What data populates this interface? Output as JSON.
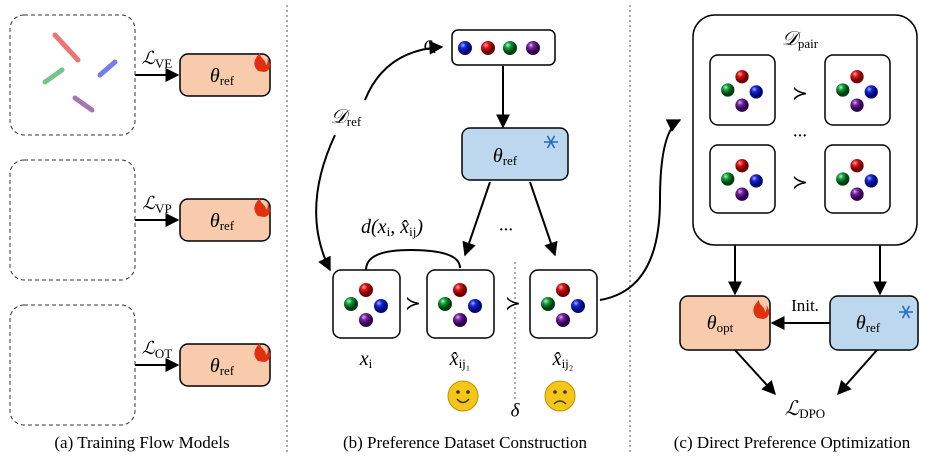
{
  "panel_a": {
    "losses": [
      [
        "ℒ",
        "VE"
      ],
      [
        "ℒ",
        "VP"
      ],
      [
        "ℒ",
        "OT"
      ]
    ],
    "models": [
      [
        "θ",
        "ref"
      ],
      [
        "θ",
        "ref"
      ],
      [
        "θ",
        "ref"
      ]
    ],
    "caption": "(a) Training Flow Models"
  },
  "panel_b": {
    "condition": [
      "c",
      "i"
    ],
    "dataset": [
      "𝒟",
      "ref"
    ],
    "model": [
      "θ",
      "ref"
    ],
    "distance": [
      "d(x",
      "i",
      ", x̂",
      "ij",
      ")"
    ],
    "samples": [
      [
        "x",
        "i"
      ],
      [
        "x̂",
        "ij₁"
      ],
      [
        "x̂",
        "ij₂"
      ]
    ],
    "prefer": [
      "≻",
      "≻"
    ],
    "ellipsis": "...",
    "delta": "δ",
    "caption": "(b) Preference Dataset Construction"
  },
  "panel_c": {
    "dataset": [
      "𝒟",
      "pair"
    ],
    "prefer": [
      "≻",
      "≻"
    ],
    "ellipsis": "...",
    "policy": [
      "θ",
      "opt"
    ],
    "reference": [
      "θ",
      "ref"
    ],
    "init": "Init.",
    "loss": [
      "ℒ",
      "DPO"
    ],
    "caption": "(c) Direct Preference Optimization"
  }
}
